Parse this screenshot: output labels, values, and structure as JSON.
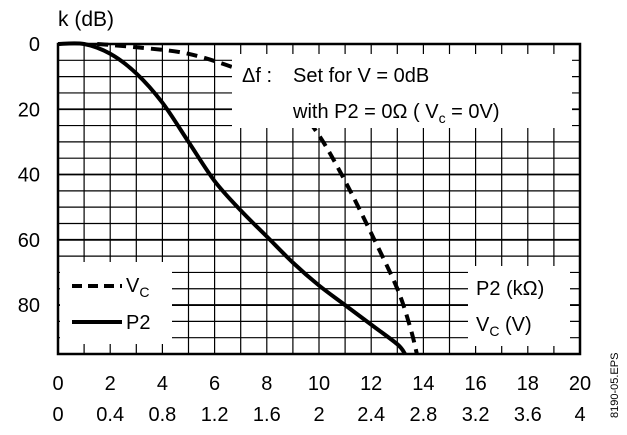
{
  "chart_data": {
    "type": "line",
    "ylabel": "k (dB)",
    "y_axis": {
      "inverted": true,
      "ylim": [
        0,
        95
      ],
      "ticks": [
        "0",
        "20",
        "40",
        "60",
        "80"
      ]
    },
    "x_axis_primary": {
      "xlim": [
        0,
        20
      ],
      "ticks": [
        "0",
        "2",
        "4",
        "6",
        "8",
        "10",
        "12",
        "14",
        "16",
        "18",
        "20"
      ]
    },
    "x_axis_secondary": {
      "xlim": [
        0,
        4
      ],
      "ticks": [
        "0",
        "0.4",
        "0.8",
        "1.2",
        "1.6",
        "2",
        "2.4",
        "2.8",
        "3.2",
        "3.6",
        "4"
      ]
    },
    "grid": true,
    "annotation_lines": [
      "Δf :",
      "Set for V = 0dB",
      "with P2 = 0Ω ( V",
      "c",
      " = 0V)"
    ],
    "right_labels": {
      "p2": "P2 (kΩ)",
      "vc": "V",
      "vc_sub": "C",
      "vc_unit": " (V)"
    },
    "legend": {
      "placement": "bottom-left",
      "vc": {
        "text": "V",
        "sub": "C"
      },
      "p2": {
        "text": "P2"
      }
    },
    "side_text": "8190-05.EPS",
    "series": [
      {
        "name": "VC",
        "style": "dashed",
        "axis": "secondary",
        "x": [
          0.3,
          0.6,
          1.0,
          1.4,
          1.6,
          1.8,
          2.0,
          2.2,
          2.4,
          2.6,
          2.7,
          2.75
        ],
        "y": [
          0,
          1,
          3,
          8,
          12,
          18,
          28,
          42,
          58,
          75,
          87,
          95
        ]
      },
      {
        "name": "P2",
        "style": "solid",
        "axis": "primary",
        "x": [
          0,
          1,
          2,
          3,
          4,
          5,
          6,
          7,
          8,
          9,
          10,
          11,
          12,
          13,
          13.3
        ],
        "y": [
          0,
          0,
          3,
          9,
          18,
          30,
          42,
          51,
          59,
          67,
          74,
          80,
          86,
          92,
          95
        ]
      }
    ]
  }
}
